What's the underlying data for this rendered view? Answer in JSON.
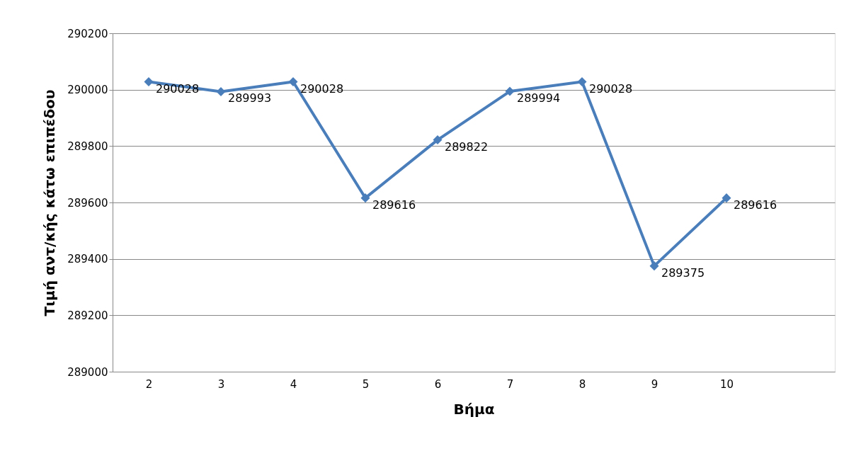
{
  "chart_data": {
    "type": "line",
    "xlabel": "Βήμα",
    "ylabel": "Τιμή αντ/κής κάτω επιπέδου",
    "categories": [
      "2",
      "3",
      "4",
      "5",
      "6",
      "7",
      "8",
      "9",
      "10",
      null
    ],
    "series": [
      {
        "color": "#4a7ebb",
        "values": [
          290028,
          289993,
          290028,
          289616,
          289822,
          289994,
          290028,
          289375,
          289616,
          null
        ]
      }
    ],
    "ylim": [
      289000,
      290200
    ],
    "yticks": [
      289000,
      289200,
      289400,
      289600,
      289800,
      290000,
      290200
    ],
    "grid": "y",
    "marker": "diamond",
    "line_style": "solid",
    "data_labels": true
  }
}
